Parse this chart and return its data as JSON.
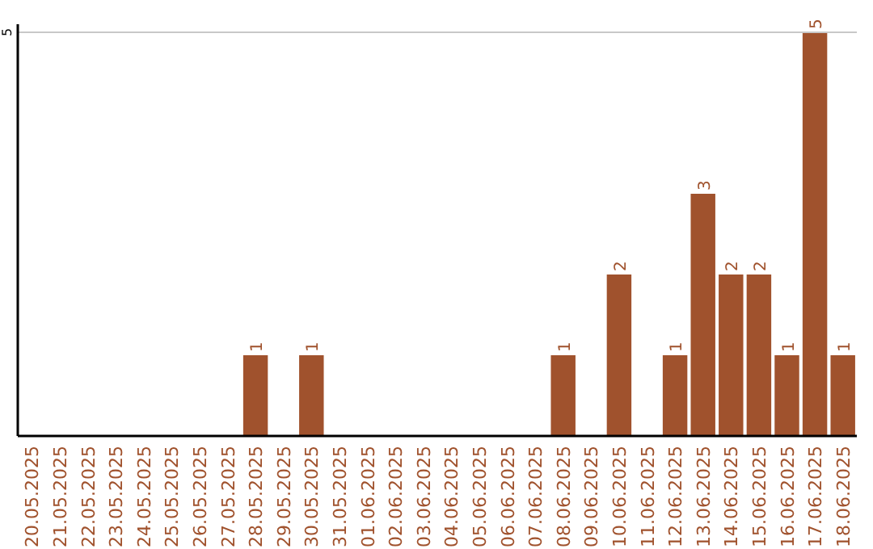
{
  "chart_data": {
    "type": "bar",
    "categories": [
      "20.05.2025",
      "21.05.2025",
      "22.05.2025",
      "23.05.2025",
      "24.05.2025",
      "25.05.2025",
      "26.05.2025",
      "27.05.2025",
      "28.05.2025",
      "29.05.2025",
      "30.05.2025",
      "31.05.2025",
      "01.06.2025",
      "02.06.2025",
      "03.06.2025",
      "04.06.2025",
      "05.06.2025",
      "06.06.2025",
      "07.06.2025",
      "08.06.2025",
      "09.06.2025",
      "10.06.2025",
      "11.06.2025",
      "12.06.2025",
      "13.06.2025",
      "14.06.2025",
      "15.06.2025",
      "16.06.2025",
      "17.06.2025",
      "18.06.2025"
    ],
    "values": [
      0,
      0,
      0,
      0,
      0,
      0,
      0,
      0,
      1,
      0,
      1,
      0,
      0,
      0,
      0,
      0,
      0,
      0,
      0,
      1,
      0,
      2,
      0,
      1,
      3,
      2,
      2,
      1,
      5,
      1
    ],
    "value_labels": [
      null,
      null,
      null,
      null,
      null,
      null,
      null,
      null,
      "1",
      null,
      "1",
      null,
      null,
      null,
      null,
      null,
      null,
      null,
      null,
      "1",
      null,
      "2",
      null,
      "1",
      "3",
      "2",
      "2",
      "1",
      "5",
      "1"
    ],
    "color": "#a0522d",
    "ylim": [
      0,
      5
    ],
    "yticks": [
      5
    ],
    "ref_lines": [
      {
        "axis": "y",
        "value": 5,
        "color": "#c8c8c8"
      }
    ]
  }
}
